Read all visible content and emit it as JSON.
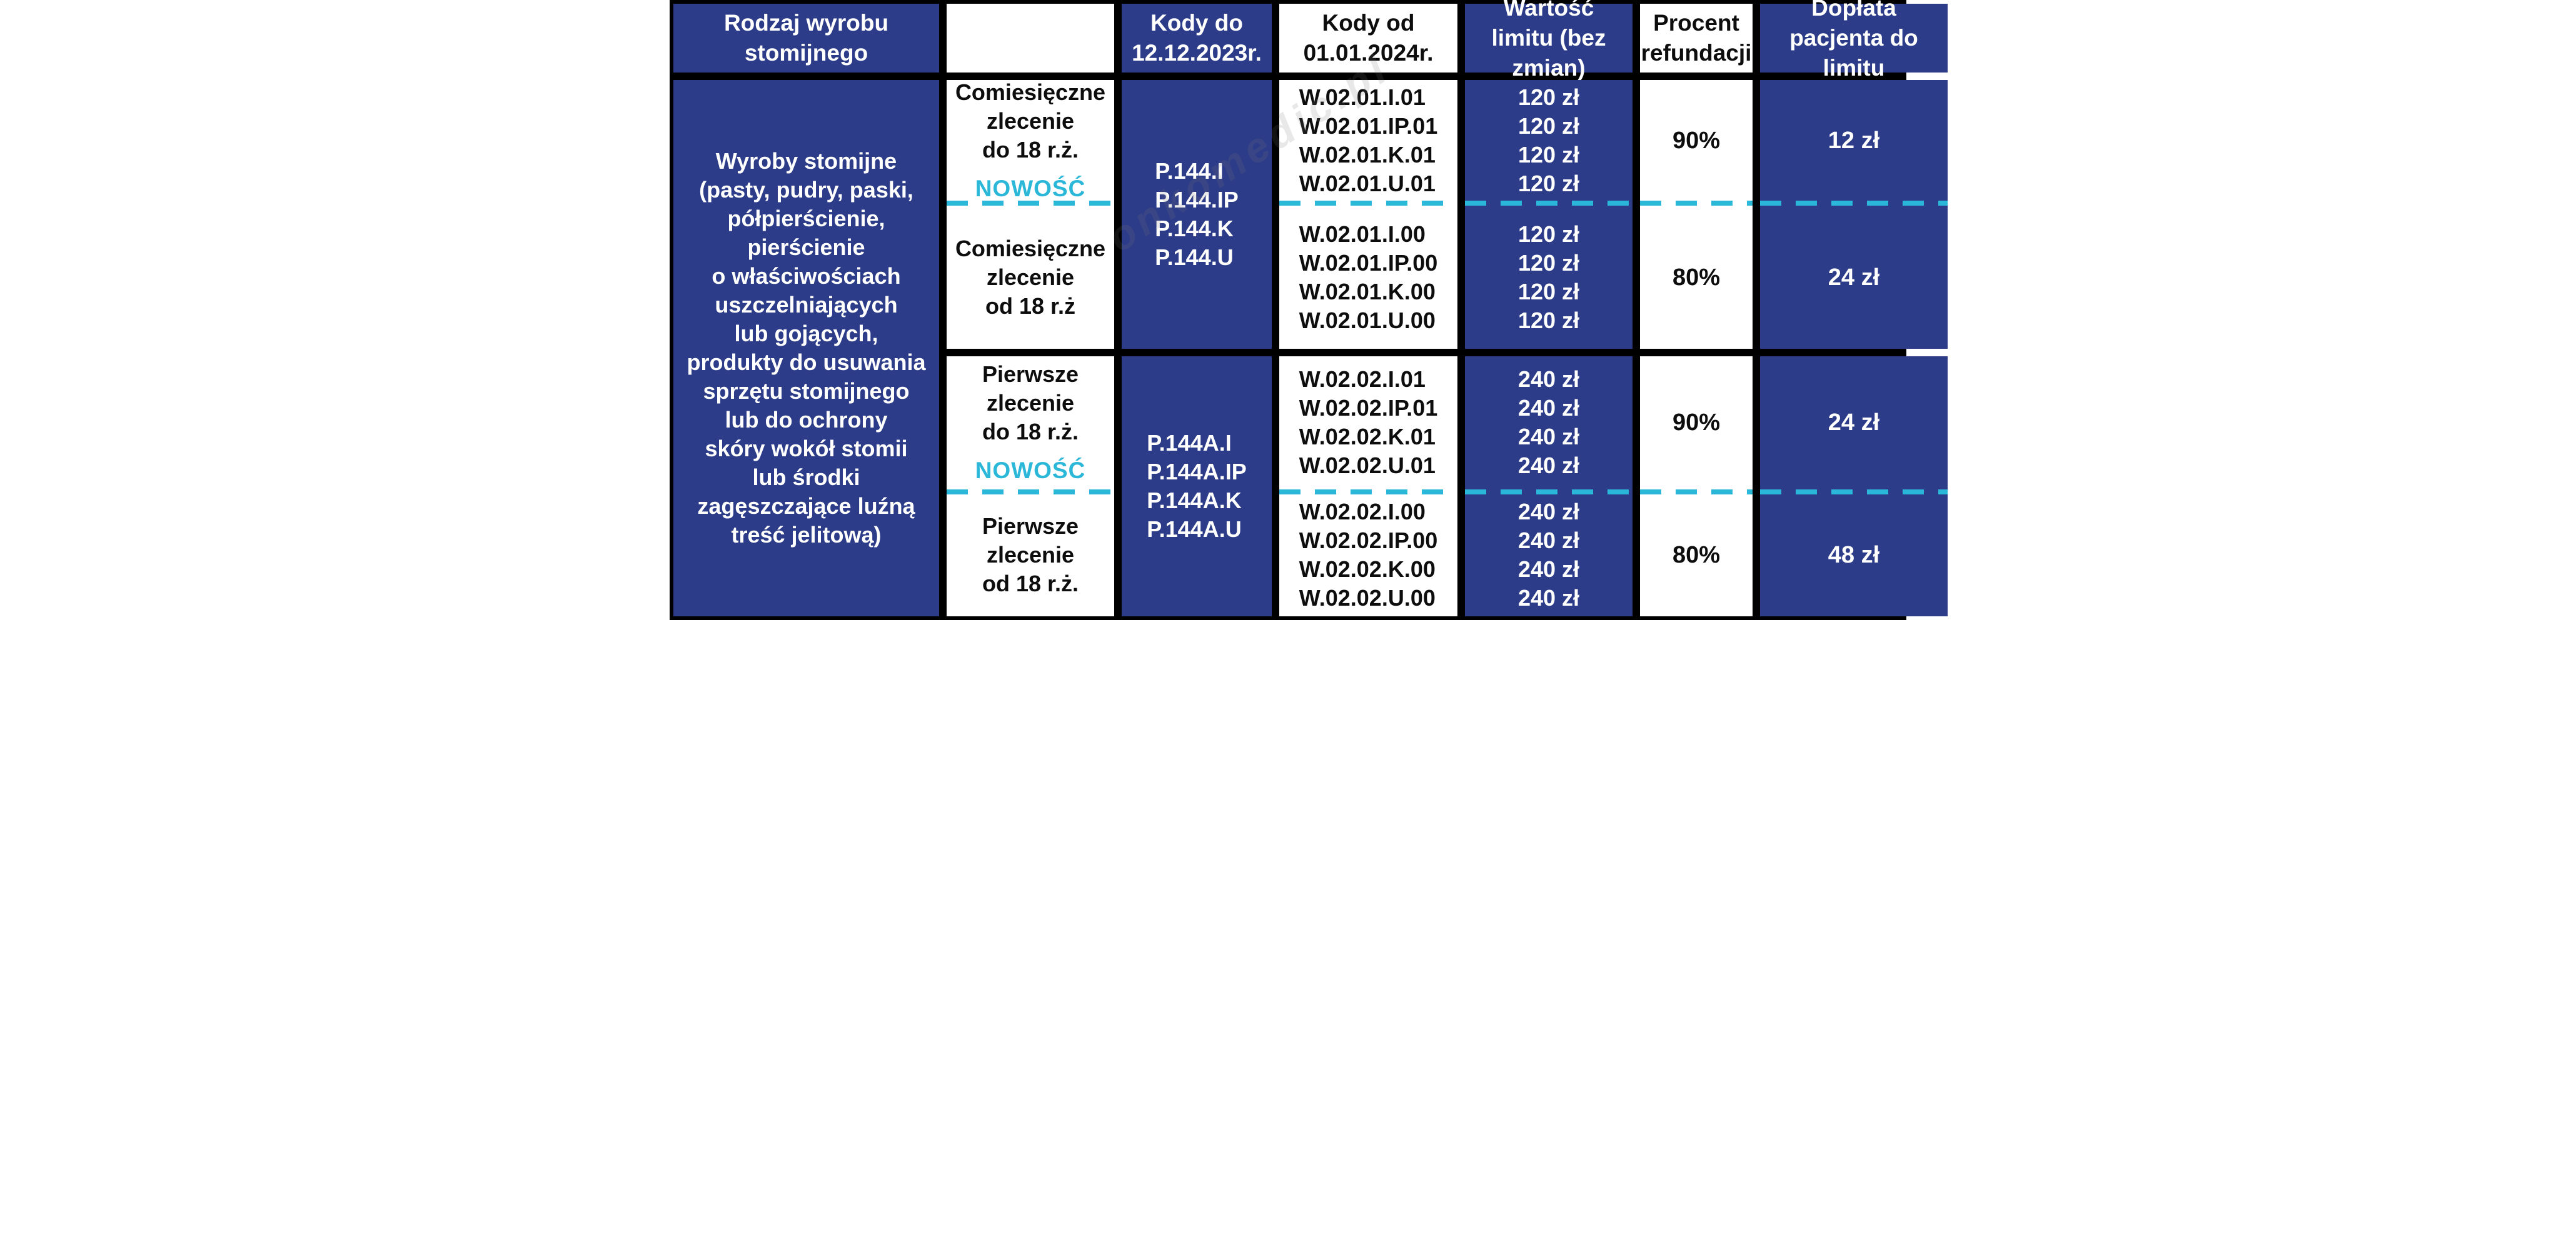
{
  "header": {
    "col_product": "Rodzaj wyrobu stomijnego",
    "col_blank": "",
    "col_codes_old": "Kody do 12.12.2023r.",
    "col_codes_new": "Kody od 01.01.2024r.",
    "col_limit": "Wartość limitu (bez zmian)",
    "col_refund": "Procent refundacji",
    "col_copay": "Dopłata pacjenta do limitu"
  },
  "product": {
    "lines": [
      "Wyroby stomijne",
      "(pasty, pudry, paski,",
      "półpierścienie,",
      "pierścienie",
      "o właściwościach",
      "uszczelniających",
      "lub gojących,",
      "produkty do usuwania",
      "sprzętu stomijnego",
      "lub do ochrony",
      "skóry wokół stomii",
      "lub środki",
      "zagęszczające luźną",
      "treść jelitową)"
    ]
  },
  "groups": [
    {
      "codes_old": [
        "P.144.I",
        "P.144.IP",
        "P.144.K",
        "P.144.U"
      ],
      "rows": [
        {
          "order_lines": [
            "Comiesięczne",
            "zlecenie",
            "do 18 r.ż."
          ],
          "badge": "NOWOŚĆ",
          "codes_new": [
            "W.02.01.I.01",
            "W.02.01.IP.01",
            "W.02.01.K.01",
            "W.02.01.U.01"
          ],
          "limits": [
            "120 zł",
            "120 zł",
            "120 zł",
            "120 zł"
          ],
          "refund": "90%",
          "copay": "12 zł"
        },
        {
          "order_lines": [
            "Comiesięczne",
            "zlecenie",
            "od 18 r.ż"
          ],
          "badge": "",
          "codes_new": [
            "W.02.01.I.00",
            "W.02.01.IP.00",
            "W.02.01.K.00",
            "W.02.01.U.00"
          ],
          "limits": [
            "120 zł",
            "120 zł",
            "120 zł",
            "120 zł"
          ],
          "refund": "80%",
          "copay": "24 zł"
        }
      ]
    },
    {
      "codes_old": [
        "P.144A.I",
        "P.144A.IP",
        "P.144A.K",
        "P.144A.U"
      ],
      "rows": [
        {
          "order_lines": [
            "Pierwsze",
            "zlecenie",
            "do 18 r.ż."
          ],
          "badge": "NOWOŚĆ",
          "codes_new": [
            "W.02.02.I.01",
            "W.02.02.IP.01",
            "W.02.02.K.01",
            "W.02.02.U.01"
          ],
          "limits": [
            "240 zł",
            "240 zł",
            "240 zł",
            "240 zł"
          ],
          "refund": "90%",
          "copay": "24 zł"
        },
        {
          "order_lines": [
            "Pierwsze",
            "zlecenie",
            "od 18 r.ż."
          ],
          "badge": "",
          "codes_new": [
            "W.02.02.I.00",
            "W.02.02.IP.00",
            "W.02.02.K.00",
            "W.02.02.U.00"
          ],
          "limits": [
            "240 zł",
            "240 zł",
            "240 zł",
            "240 zł"
          ],
          "refund": "80%",
          "copay": "48 zł"
        }
      ]
    }
  ],
  "colors": {
    "navy": "#2d3c88",
    "cyan": "#2bb7d8",
    "black": "#000000",
    "white": "#ffffff"
  },
  "watermark": "onkomedic.pl"
}
